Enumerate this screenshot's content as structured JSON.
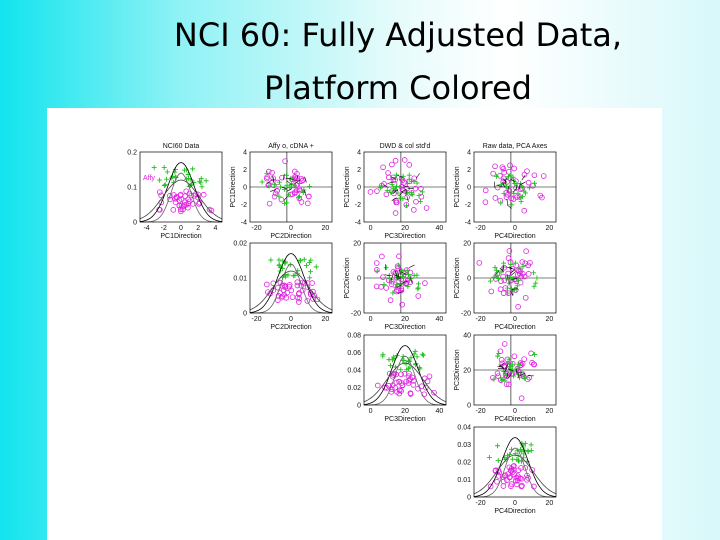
{
  "title": [
    "NCI 60:  Fully Adjusted Data,",
    "Platform Colored"
  ],
  "panels": [
    {
      "title": "NCI60 Data",
      "legend": "Affy",
      "yticks": [
        "0",
        "0.1",
        "0.2"
      ],
      "xticks": [
        "-4",
        "-2",
        "0",
        "2",
        "4"
      ],
      "xlabel": "PC1Direction"
    },
    {
      "title": "Affy o,  cDNA +",
      "ylabel": "PC1Direction",
      "yticks": [
        "-4",
        "-2",
        "0",
        "2",
        "4"
      ],
      "xticks": [
        "-20",
        "0",
        "20"
      ],
      "xlabel": "PC2Direction"
    },
    {
      "title": "DWD & col std'd",
      "ylabel": "PC1Direction",
      "yticks": [
        "-4",
        "-2",
        "0",
        "2",
        "4"
      ],
      "xticks": [
        "0",
        "20",
        "40"
      ],
      "xlabel": "PC3Direction"
    },
    {
      "title": "Raw data, PCA Axes",
      "ylabel": "PC1Direction",
      "yticks": [
        "-4",
        "-2",
        "0",
        "2",
        "4"
      ],
      "xticks": [
        "-20",
        "0",
        "20"
      ],
      "xlabel": "PC4Direction"
    },
    {
      "yticks": [
        "0",
        "0.01",
        "0.02"
      ],
      "xticks": [
        "-20",
        "0",
        "20"
      ],
      "xlabel": "PC2Direction"
    },
    {
      "ylabel": "PC2Direction",
      "yticks": [
        "-20",
        "0",
        "20"
      ],
      "xticks": [
        "0",
        "20",
        "40"
      ],
      "xlabel": "PC3Direction"
    },
    {
      "ylabel": "PC2Direction",
      "yticks": [
        "-20",
        "0",
        "20"
      ],
      "xticks": [
        "-20",
        "0",
        "20"
      ],
      "xlabel": "PC4Direction"
    },
    {
      "yticks": [
        "0",
        "0.02",
        "0.04",
        "0.06",
        "0.08"
      ],
      "xticks": [
        "0",
        "20",
        "40"
      ],
      "xlabel": "PC3Direction"
    },
    {
      "ylabel": "PC3Direction",
      "yticks": [
        "0",
        "20",
        "40"
      ],
      "xticks": [
        "-20",
        "0",
        "20"
      ],
      "xlabel": "PC4Direction"
    },
    {
      "yticks": [
        "0",
        "0.01",
        "0.02",
        "0.03",
        "0.04"
      ],
      "xticks": [
        "-20",
        "0",
        "20"
      ],
      "xlabel": "PC4Direction"
    }
  ]
}
